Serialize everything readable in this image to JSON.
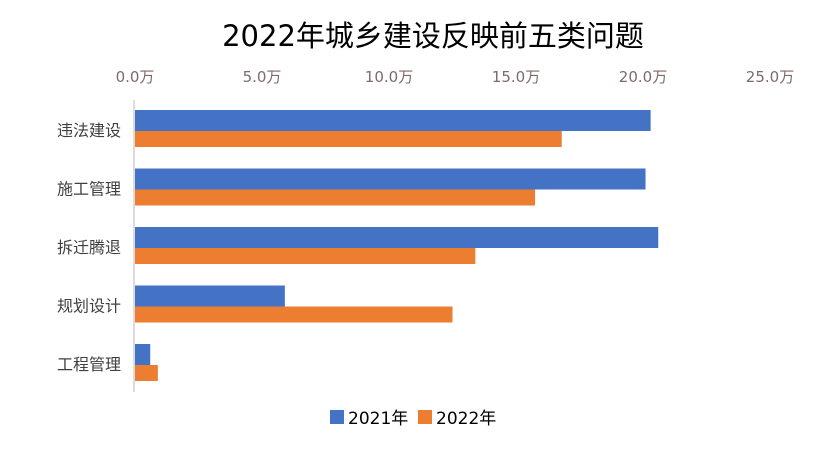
{
  "chart_data": {
    "type": "bar",
    "orientation": "horizontal",
    "title": "2022年城乡建设反映前五类问题",
    "categories": [
      "违法建设",
      "施工管理",
      "拆迁腾退",
      "规划设计",
      "工程管理"
    ],
    "series": [
      {
        "name": "2021年",
        "color": "#4472C4",
        "values": [
          20.3,
          20.1,
          20.6,
          5.9,
          0.6
        ]
      },
      {
        "name": "2022年",
        "color": "#ED7D31",
        "values": [
          16.8,
          15.75,
          13.4,
          12.5,
          0.9
        ]
      }
    ],
    "xlim": [
      0,
      25
    ],
    "xticks": [
      "0.0万",
      "5.0万",
      "10.0万",
      "15.0万",
      "20.0万",
      "25.0万"
    ],
    "xtick_values": [
      0,
      5,
      10,
      15,
      20,
      25
    ],
    "x_axis_position": "top",
    "grid": false,
    "legend_position": "bottom"
  }
}
